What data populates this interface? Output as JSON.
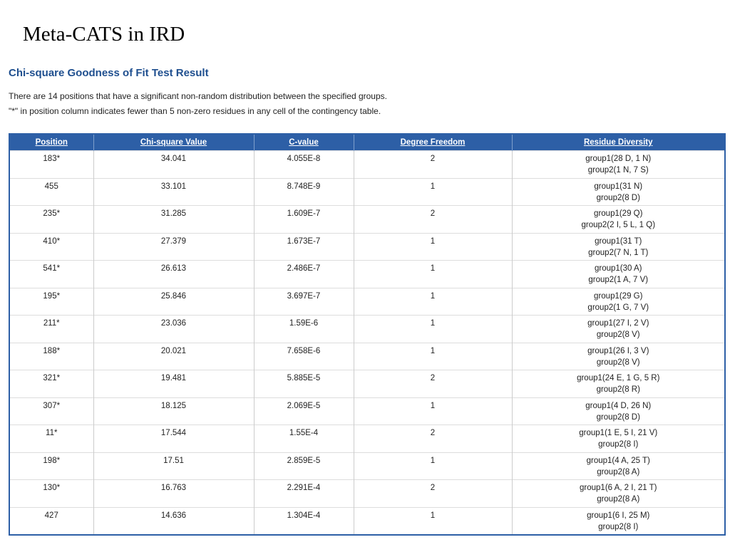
{
  "slide_title": "Meta-CATS in IRD",
  "section_title": "Chi-square Goodness of Fit Test Result",
  "description": [
    "There are 14 positions that have a significant non-random distribution between the specified groups.",
    "\"*\" in position column indicates fewer than 5 non-zero residues in any cell of the contingency table."
  ],
  "table": {
    "headers": [
      "Position",
      "Chi-square Value",
      "C-value",
      "Degree Freedom",
      "Residue Diversity"
    ],
    "rows": [
      [
        "183*",
        "34.041",
        "4.055E-8",
        "2",
        [
          "group1(28 D, 1 N)",
          "group2(1 N, 7 S)"
        ]
      ],
      [
        "455",
        "33.101",
        "8.748E-9",
        "1",
        [
          "group1(31 N)",
          "group2(8 D)"
        ]
      ],
      [
        "235*",
        "31.285",
        "1.609E-7",
        "2",
        [
          "group1(29 Q)",
          "group2(2 I, 5 L, 1 Q)"
        ]
      ],
      [
        "410*",
        "27.379",
        "1.673E-7",
        "1",
        [
          "group1(31 T)",
          "group2(7 N, 1 T)"
        ]
      ],
      [
        "541*",
        "26.613",
        "2.486E-7",
        "1",
        [
          "group1(30 A)",
          "group2(1 A, 7 V)"
        ]
      ],
      [
        "195*",
        "25.846",
        "3.697E-7",
        "1",
        [
          "group1(29 G)",
          "group2(1 G, 7 V)"
        ]
      ],
      [
        "211*",
        "23.036",
        "1.59E-6",
        "1",
        [
          "group1(27 I, 2 V)",
          "group2(8 V)"
        ]
      ],
      [
        "188*",
        "20.021",
        "7.658E-6",
        "1",
        [
          "group1(26 I, 3 V)",
          "group2(8 V)"
        ]
      ],
      [
        "321*",
        "19.481",
        "5.885E-5",
        "2",
        [
          "group1(24 E, 1 G, 5 R)",
          "group2(8 R)"
        ]
      ],
      [
        "307*",
        "18.125",
        "2.069E-5",
        "1",
        [
          "group1(4 D, 26 N)",
          "group2(8 D)"
        ]
      ],
      [
        "11*",
        "17.544",
        "1.55E-4",
        "2",
        [
          "group1(1 E, 5 I, 21 V)",
          "group2(8 I)"
        ]
      ],
      [
        "198*",
        "17.51",
        "2.859E-5",
        "1",
        [
          "group1(4 A, 25 T)",
          "group2(8 A)"
        ]
      ],
      [
        "130*",
        "16.763",
        "2.291E-4",
        "2",
        [
          "group1(6 A, 2 I, 21 T)",
          "group2(8 A)"
        ]
      ],
      [
        "427",
        "14.636",
        "1.304E-4",
        "1",
        [
          "group1(6 I, 25 M)",
          "group2(8 I)"
        ]
      ]
    ]
  }
}
